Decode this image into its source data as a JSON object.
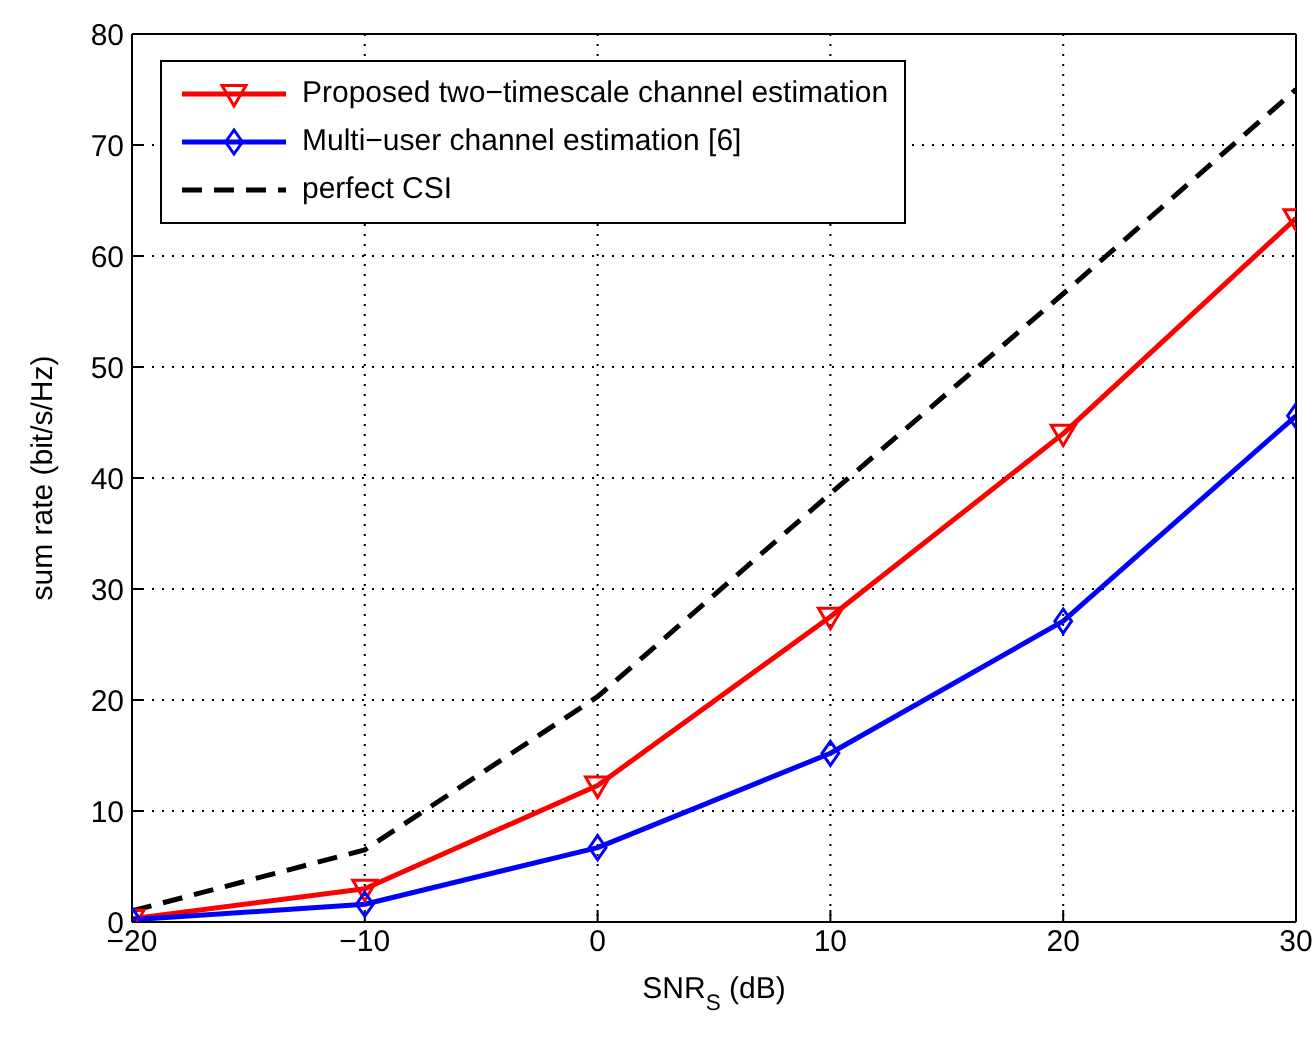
{
  "chart_data": {
    "type": "line",
    "xlabel": "SNR$_{S}$ (dB)",
    "ylabel": "sum rate (bit/s/Hz)",
    "x": [
      -20,
      -10,
      0,
      10,
      20,
      30
    ],
    "series": [
      {
        "name": "Proposed two−timescale channel estimation",
        "color": "#ff0000",
        "marker": "triangle",
        "line_style": "solid",
        "values": [
          0.3,
          3.0,
          12.3,
          27.5,
          44.0,
          63.4
        ]
      },
      {
        "name": "Multi−user channel estimation [6]",
        "color": "#0000ff",
        "marker": "diamond",
        "line_style": "solid",
        "values": [
          0.2,
          1.6,
          6.7,
          15.2,
          27.1,
          45.6
        ]
      },
      {
        "name": "perfect CSI",
        "color": "#000000",
        "marker": "none",
        "line_style": "dashed",
        "values": [
          1.0,
          6.5,
          20.3,
          38.6,
          56.6,
          75.0
        ]
      }
    ],
    "xlim": [
      -20,
      30
    ],
    "xticks": [
      {
        "value": -20,
        "label": "−20"
      },
      {
        "value": -10,
        "label": "−10"
      },
      0,
      10,
      20,
      30
    ],
    "ylim": [
      0,
      80
    ],
    "yticks": [
      0,
      10,
      20,
      30,
      40,
      50,
      60,
      70,
      80
    ],
    "grid": true,
    "legend": "top left"
  }
}
